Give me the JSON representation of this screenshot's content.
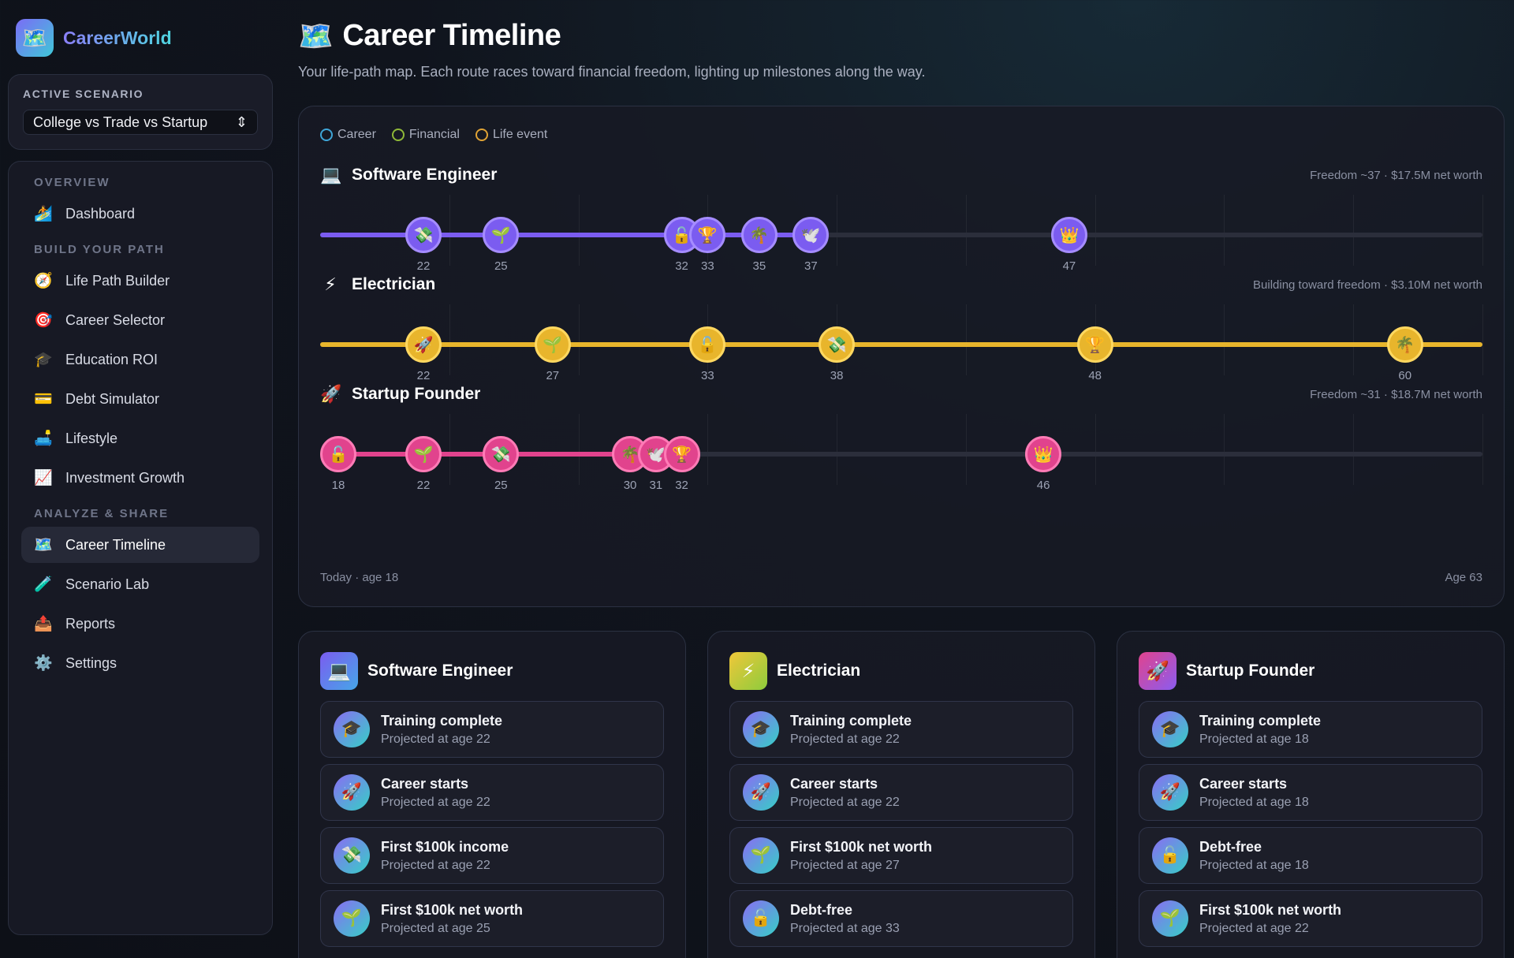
{
  "brand": {
    "name": "CareerWorld",
    "logo_icon": "🗺️"
  },
  "scenario": {
    "label": "ACTIVE SCENARIO",
    "value": "College vs Trade vs Startup",
    "chevron": "⇕"
  },
  "nav": {
    "sections": [
      {
        "title": "OVERVIEW",
        "items": [
          {
            "icon": "🏄",
            "icon_name": "surfer-icon",
            "label": "Dashboard"
          }
        ]
      },
      {
        "title": "BUILD YOUR PATH",
        "items": [
          {
            "icon": "🧭",
            "icon_name": "compass-icon",
            "label": "Life Path Builder"
          },
          {
            "icon": "🎯",
            "icon_name": "target-icon",
            "label": "Career Selector"
          },
          {
            "icon": "🎓",
            "icon_name": "graduation-cap-icon",
            "label": "Education ROI"
          },
          {
            "icon": "💳",
            "icon_name": "credit-card-icon",
            "label": "Debt Simulator"
          },
          {
            "icon": "🛋️",
            "icon_name": "couch-icon",
            "label": "Lifestyle"
          },
          {
            "icon": "📈",
            "icon_name": "chart-up-icon",
            "label": "Investment Growth"
          }
        ]
      },
      {
        "title": "ANALYZE & SHARE",
        "items": [
          {
            "icon": "🗺️",
            "icon_name": "map-icon",
            "label": "Career Timeline",
            "active": true
          },
          {
            "icon": "🧪",
            "icon_name": "test-tube-icon",
            "label": "Scenario Lab"
          },
          {
            "icon": "📤",
            "icon_name": "outbox-icon",
            "label": "Reports"
          },
          {
            "icon": "⚙️",
            "icon_name": "gear-icon",
            "label": "Settings"
          }
        ]
      }
    ]
  },
  "header": {
    "icon": "🗺️",
    "title": "Career Timeline",
    "subtitle": "Your life-path map. Each route races toward financial freedom, lighting up milestones along the way."
  },
  "legend": [
    {
      "label": "Career",
      "color": "#3fa6d8"
    },
    {
      "label": "Financial",
      "color": "#8fb838"
    },
    {
      "label": "Life event",
      "color": "#e0a335"
    }
  ],
  "axis": {
    "min_age": 18,
    "max_age": 63,
    "start_label": "Today · age 18",
    "end_label": "Age 63"
  },
  "lanes": [
    {
      "title": "Software Engineer",
      "icon": "💻",
      "icon_name": "laptop-icon",
      "note": "Freedom ~37 · $17.5M net worth",
      "color": "#7b5cf0",
      "border": "#a58cff",
      "fill_to_age": 37,
      "milestones": [
        {
          "age": 22,
          "icon": "💸",
          "name": "money-icon"
        },
        {
          "age": 25,
          "icon": "🌱",
          "name": "sprout-icon"
        },
        {
          "age": 32,
          "icon": "🔓",
          "name": "unlock-icon"
        },
        {
          "age": 33,
          "icon": "🏆",
          "name": "trophy-icon"
        },
        {
          "age": 35,
          "icon": "🌴",
          "name": "palm-tree-icon"
        },
        {
          "age": 37,
          "icon": "🕊️",
          "name": "dove-icon"
        },
        {
          "age": 47,
          "icon": "👑",
          "name": "crown-icon"
        }
      ]
    },
    {
      "title": "Electrician",
      "icon": "⚡",
      "icon_name": "lightning-icon",
      "note": "Building toward freedom · $3.10M net worth",
      "color": "#e8b52c",
      "border": "#ffd860",
      "fill_to_age": 63,
      "milestones": [
        {
          "age": 22,
          "icon": "🚀",
          "name": "rocket-icon"
        },
        {
          "age": 27,
          "icon": "🌱",
          "name": "sprout-icon"
        },
        {
          "age": 33,
          "icon": "🔓",
          "name": "unlock-icon"
        },
        {
          "age": 38,
          "icon": "💸",
          "name": "money-icon"
        },
        {
          "age": 48,
          "icon": "🏆",
          "name": "trophy-icon"
        },
        {
          "age": 60,
          "icon": "🌴",
          "name": "palm-tree-icon"
        }
      ]
    },
    {
      "title": "Startup Founder",
      "icon": "🚀",
      "icon_name": "rocket-icon",
      "note": "Freedom ~31 · $18.7M net worth",
      "color": "#e1438d",
      "border": "#ff7bb6",
      "fill_to_age": 31,
      "milestones": [
        {
          "age": 18,
          "icon": "🔓",
          "name": "unlock-icon"
        },
        {
          "age": 22,
          "icon": "🌱",
          "name": "sprout-icon"
        },
        {
          "age": 25,
          "icon": "💸",
          "name": "money-icon"
        },
        {
          "age": 30,
          "icon": "🌴",
          "name": "palm-tree-icon"
        },
        {
          "age": 31,
          "icon": "🕊️",
          "name": "dove-icon"
        },
        {
          "age": 32,
          "icon": "🏆",
          "name": "trophy-icon"
        },
        {
          "age": 46,
          "icon": "👑",
          "name": "crown-icon"
        }
      ]
    }
  ],
  "cards": [
    {
      "title": "Software Engineer",
      "icon": "💻",
      "icon_name": "laptop-icon",
      "gradient": [
        "#7b5cf0",
        "#46a6e8"
      ],
      "milestones": [
        {
          "icon": "🎓",
          "name": "graduation-cap-icon",
          "title": "Training complete",
          "sub": "Projected at age 22"
        },
        {
          "icon": "🚀",
          "name": "rocket-icon",
          "title": "Career starts",
          "sub": "Projected at age 22"
        },
        {
          "icon": "💸",
          "name": "money-icon",
          "title": "First $100k income",
          "sub": "Projected at age 22"
        },
        {
          "icon": "🌱",
          "name": "sprout-icon",
          "title": "First $100k net worth",
          "sub": "Projected at age 25"
        }
      ]
    },
    {
      "title": "Electrician",
      "icon": "⚡",
      "icon_name": "lightning-icon",
      "gradient": [
        "#f0c73a",
        "#8dcc3c"
      ],
      "milestones": [
        {
          "icon": "🎓",
          "name": "graduation-cap-icon",
          "title": "Training complete",
          "sub": "Projected at age 22"
        },
        {
          "icon": "🚀",
          "name": "rocket-icon",
          "title": "Career starts",
          "sub": "Projected at age 22"
        },
        {
          "icon": "🌱",
          "name": "sprout-icon",
          "title": "First $100k net worth",
          "sub": "Projected at age 27"
        },
        {
          "icon": "🔓",
          "name": "unlock-icon",
          "title": "Debt-free",
          "sub": "Projected at age 33"
        }
      ]
    },
    {
      "title": "Startup Founder",
      "icon": "🚀",
      "icon_name": "rocket-icon",
      "gradient": [
        "#e1438d",
        "#8a5cf0"
      ],
      "milestones": [
        {
          "icon": "🎓",
          "name": "graduation-cap-icon",
          "title": "Training complete",
          "sub": "Projected at age 18"
        },
        {
          "icon": "🚀",
          "name": "rocket-icon",
          "title": "Career starts",
          "sub": "Projected at age 18"
        },
        {
          "icon": "🔓",
          "name": "unlock-icon",
          "title": "Debt-free",
          "sub": "Projected at age 18"
        },
        {
          "icon": "🌱",
          "name": "sprout-icon",
          "title": "First $100k net worth",
          "sub": "Projected at age 22"
        }
      ]
    }
  ]
}
